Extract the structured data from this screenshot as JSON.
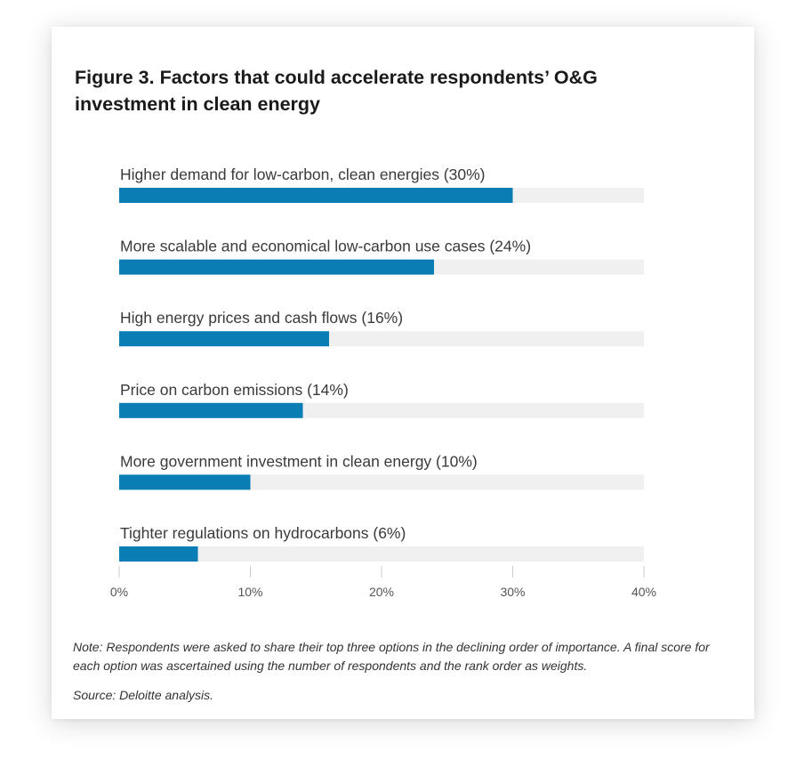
{
  "figure": {
    "title": "Figure 3. Factors that could accelerate respondents’ O&G investment in clean energy",
    "note": "Note: Respondents were asked to share their top three options in the declining order of importance. A final score for each option was ascertained using the number of respondents and the rank order as weights.",
    "source": "Source: Deloitte analysis."
  },
  "colors": {
    "bar": "#0a7db5",
    "track": "#f0f0f0",
    "tick": "#cccccc"
  },
  "chart_data": {
    "type": "bar",
    "orientation": "horizontal",
    "title": "Figure 3. Factors that could accelerate respondents’ O&G investment in clean energy",
    "xlabel": "",
    "ylabel": "",
    "xlim": [
      0,
      40
    ],
    "grid": false,
    "categories": [
      "Higher demand for low-carbon, clean energies (30%)",
      "More scalable and economical low-carbon use cases (24%)",
      "High energy prices and cash flows (16%)",
      "Price on carbon emissions (14%)",
      "More government investment in clean energy (10%)",
      "Tighter regulations on hydrocarbons (6%)"
    ],
    "values": [
      30,
      24,
      16,
      14,
      10,
      6
    ],
    "ticks": [
      0,
      10,
      20,
      30,
      40
    ],
    "tick_labels": [
      "0%",
      "10%",
      "20%",
      "30%",
      "40%"
    ]
  }
}
